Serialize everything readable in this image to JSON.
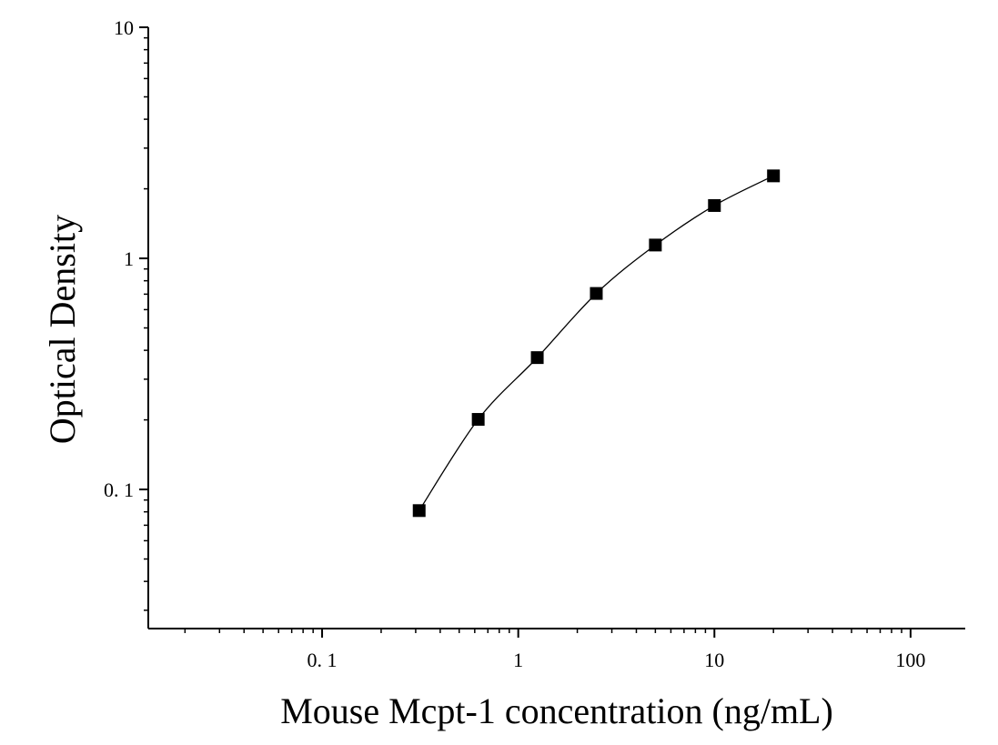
{
  "chart_data": {
    "type": "scatter",
    "title": "",
    "xlabel": "Mouse Mcpt-1 concentration (ng/mL)",
    "ylabel": "Optical Density",
    "x_scale": "log",
    "y_scale": "log",
    "xlim": [
      0.013,
      190
    ],
    "ylim": [
      0.025,
      10
    ],
    "x_ticks": [
      {
        "value": 0.1,
        "label": "0. 1"
      },
      {
        "value": 1,
        "label": "1"
      },
      {
        "value": 10,
        "label": "10"
      },
      {
        "value": 100,
        "label": "100"
      }
    ],
    "y_ticks": [
      {
        "value": 0.1,
        "label": "0. 1"
      },
      {
        "value": 1,
        "label": "1"
      },
      {
        "value": 10,
        "label": "10"
      }
    ],
    "grid": false,
    "legend": "none",
    "marker_color": "#000000",
    "line_color": "#000000",
    "series": [
      {
        "marker": "square",
        "fit_curve": true,
        "x": [
          0.3125,
          0.625,
          1.25,
          2.5,
          5,
          10,
          20
        ],
        "y": [
          0.081,
          0.201,
          0.372,
          0.705,
          1.142,
          1.693,
          2.275
        ]
      }
    ]
  }
}
